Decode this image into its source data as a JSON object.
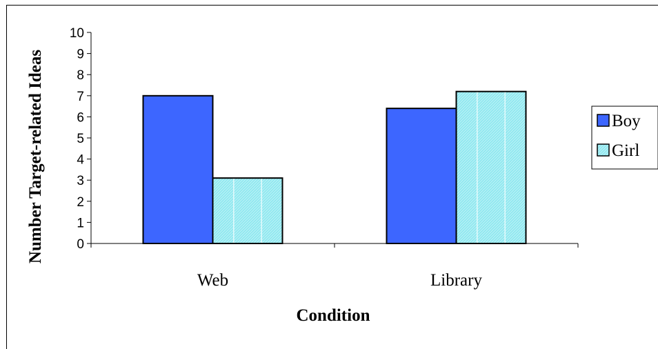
{
  "chart_data": {
    "type": "bar",
    "categories": [
      "Web",
      "Library"
    ],
    "series": [
      {
        "name": "Boy",
        "values": [
          7.0,
          6.4
        ],
        "color": "#3d66ff",
        "pattern": "solid"
      },
      {
        "name": "Girl",
        "values": [
          3.1,
          7.2
        ],
        "color": "#8fe8f0",
        "pattern": "hatched"
      }
    ],
    "xlabel": "Condition",
    "ylabel": "Number Target-related Ideas",
    "ylim": [
      0,
      10
    ],
    "yticks": [
      0,
      1,
      2,
      3,
      4,
      5,
      6,
      7,
      8,
      9,
      10
    ],
    "grid": false,
    "legend": "right"
  }
}
